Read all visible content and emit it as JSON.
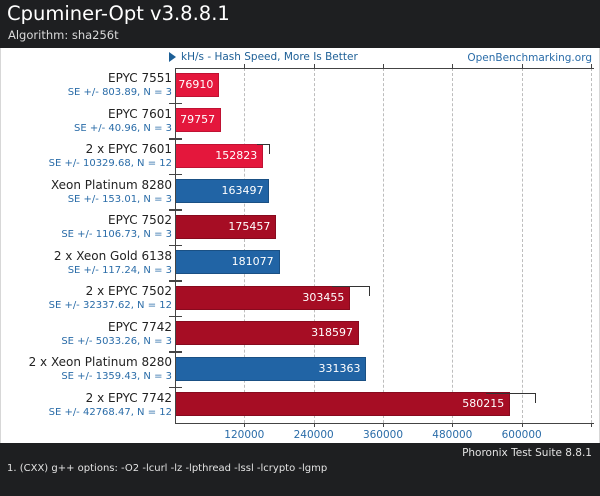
{
  "header": {
    "title": "Cpuminer-Opt v3.8.8.1",
    "subtitle": "Algorithm: sha256t"
  },
  "chart_header": {
    "left_label": "kH/s - Hash Speed, More Is Better",
    "right_label": "OpenBenchmarking.org"
  },
  "chart_data": {
    "type": "bar",
    "orientation": "horizontal",
    "title": "Cpuminer-Opt v3.8.8.1",
    "subtitle": "Algorithm: sha256t",
    "unit": "kH/s",
    "higher_is_better": true,
    "xlabel": "kH/s - Hash Speed",
    "xlim": [
      0,
      720000
    ],
    "grid": "dashed-vertical",
    "categories": [
      "EPYC 7551",
      "EPYC 7601",
      "2 x EPYC 7601",
      "Xeon Platinum 8280",
      "EPYC 7502",
      "2 x Xeon Gold 6138",
      "2 x EPYC 7502",
      "EPYC 7742",
      "2 x Xeon Platinum 8280",
      "2 x EPYC 7742"
    ],
    "series": [
      {
        "name": "Hash Speed (kH/s)",
        "values": [
          76910,
          79757,
          152823,
          163497,
          175457,
          181077,
          303455,
          318597,
          331363,
          580215
        ]
      }
    ],
    "rows": [
      {
        "label": "EPYC 7551",
        "se_label": "SE +/- 803.89, N = 3",
        "value": 76910,
        "se": 803.89,
        "n": 3,
        "color": "bright_red"
      },
      {
        "label": "EPYC 7601",
        "se_label": "SE +/- 40.96, N = 3",
        "value": 79757,
        "se": 40.96,
        "n": 3,
        "color": "bright_red"
      },
      {
        "label": "2 x EPYC 7601",
        "se_label": "SE +/- 10329.68, N = 12",
        "value": 152823,
        "se": 10329.68,
        "n": 12,
        "color": "bright_red"
      },
      {
        "label": "Xeon Platinum 8280",
        "se_label": "SE +/- 153.01, N = 3",
        "value": 163497,
        "se": 153.01,
        "n": 3,
        "color": "blue"
      },
      {
        "label": "EPYC 7502",
        "se_label": "SE +/- 1106.73, N = 3",
        "value": 175457,
        "se": 1106.73,
        "n": 3,
        "color": "dark_red"
      },
      {
        "label": "2 x Xeon Gold 6138",
        "se_label": "SE +/- 117.24, N = 3",
        "value": 181077,
        "se": 117.24,
        "n": 3,
        "color": "blue"
      },
      {
        "label": "2 x EPYC 7502",
        "se_label": "SE +/- 32337.62, N = 12",
        "value": 303455,
        "se": 32337.62,
        "n": 12,
        "color": "dark_red"
      },
      {
        "label": "EPYC 7742",
        "se_label": "SE +/- 5033.26, N = 3",
        "value": 318597,
        "se": 5033.26,
        "n": 3,
        "color": "dark_red"
      },
      {
        "label": "2 x Xeon Platinum 8280",
        "se_label": "SE +/- 1359.43, N = 3",
        "value": 331363,
        "se": 1359.43,
        "n": 3,
        "color": "blue"
      },
      {
        "label": "2 x EPYC 7742",
        "se_label": "SE +/- 42768.47, N = 12",
        "value": 580215,
        "se": 42768.47,
        "n": 12,
        "color": "dark_red"
      }
    ],
    "x_axis": {
      "step": 120000,
      "max": 720000,
      "tick_labels": [
        "120000",
        "240000",
        "360000",
        "480000",
        "600000"
      ]
    },
    "legend": null
  },
  "colors": {
    "bright_red": "#e4173c",
    "bright_red_border": "#bf1233",
    "dark_red": "#a60d24",
    "dark_red_border": "#870a1e",
    "blue": "#2164a5",
    "blue_border": "#1a5084",
    "caption_blue": "#1d5f96",
    "link_blue": "#2a6ca8",
    "axis": "#444444",
    "grid": "#bdbdbd",
    "header_bg": "#1e1f21",
    "bar_text": "#ffffff"
  },
  "footer": {
    "note": "1. (CXX) g++ options: -O2 -lcurl -lz -lpthread -lssl -lcrypto -lgmp",
    "suite": "Phoronix Test Suite 8.8.1"
  }
}
